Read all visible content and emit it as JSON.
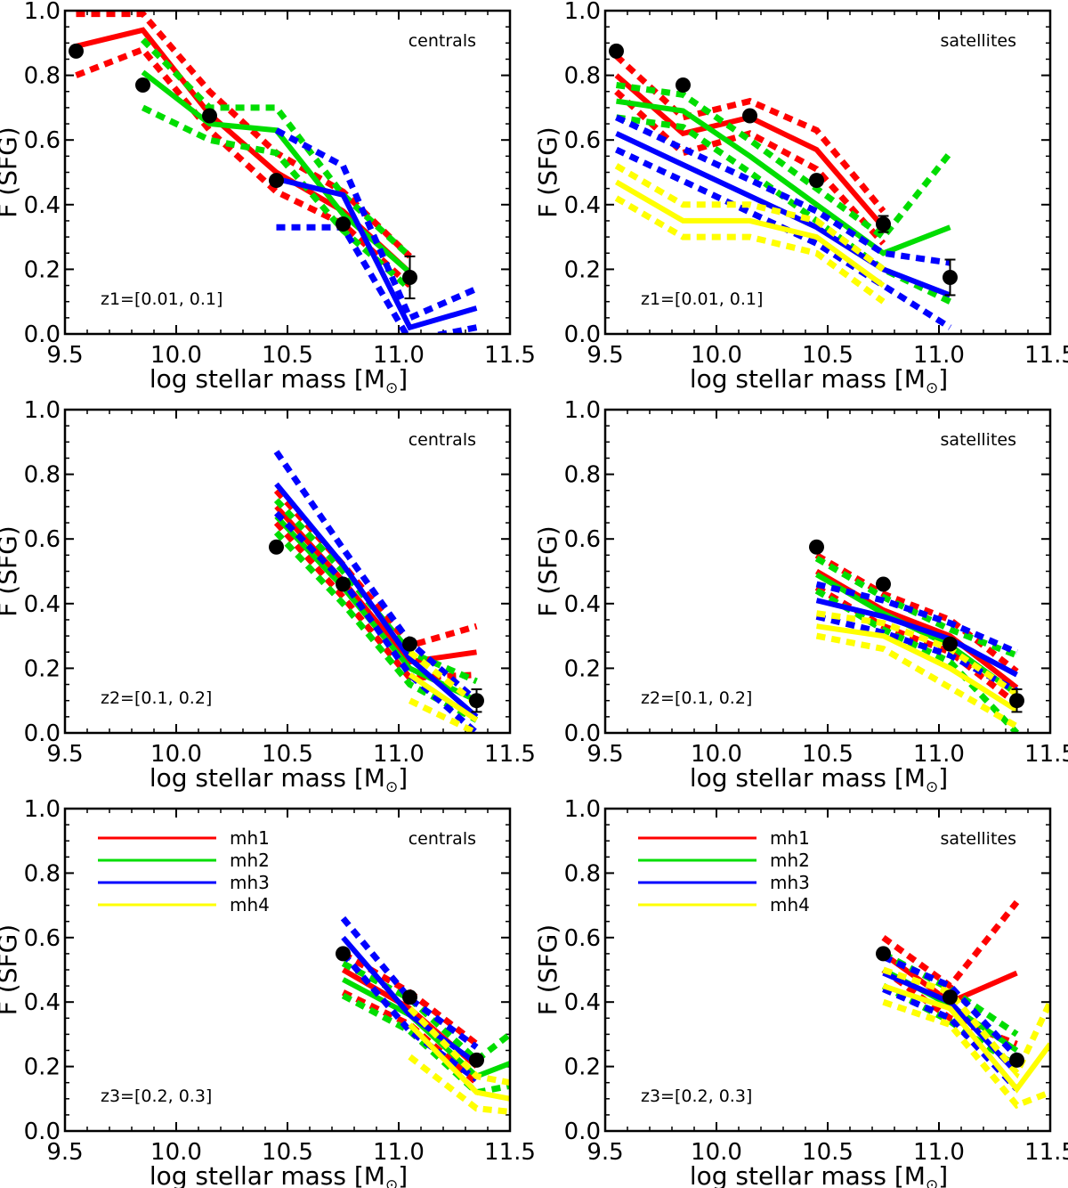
{
  "chart_data": [
    {
      "type": "line",
      "xlabel": "log stellar mass [M",
      "ylabel": "F (SFG)",
      "xlim": [
        9.5,
        11.5
      ],
      "ylim": [
        0.0,
        1.0
      ],
      "xticks": [
        "9.5",
        "10.0",
        "10.5",
        "11.0",
        "11.5"
      ],
      "yticks": [
        "0.0",
        "0.2",
        "0.4",
        "0.6",
        "0.8",
        "1.0"
      ],
      "label": "centrals",
      "zlabel": "z1=[0.01, 0.1]",
      "legend": [],
      "observed": {
        "x": [
          9.55,
          9.85,
          10.15,
          10.45,
          10.75,
          11.05
        ],
        "y": [
          0.875,
          0.77,
          0.675,
          0.475,
          0.34,
          0.175
        ],
        "err": [
          0,
          0,
          0,
          0,
          0,
          0.065
        ]
      },
      "series": [
        {
          "name": "mh1",
          "color": "#ff0000",
          "x": [
            9.55,
            9.85,
            10.15,
            10.45,
            10.75,
            11.05
          ],
          "y": [
            0.89,
            0.94,
            0.68,
            0.5,
            0.38,
            0.19
          ],
          "lo": [
            0.8,
            0.88,
            0.63,
            0.44,
            0.34,
            0.15
          ],
          "hi": [
            0.99,
            0.99,
            0.75,
            0.56,
            0.44,
            0.24
          ]
        },
        {
          "name": "mh2",
          "color": "#00dd00",
          "x": [
            9.85,
            10.15,
            10.45,
            10.75,
            11.05
          ],
          "y": [
            0.81,
            0.65,
            0.63,
            0.37,
            0.19
          ],
          "lo": [
            0.7,
            0.6,
            0.56,
            0.32,
            0.14
          ],
          "hi": [
            0.91,
            0.7,
            0.7,
            0.43,
            0.24
          ]
        },
        {
          "name": "mh3",
          "color": "#0000ff",
          "x": [
            10.45,
            10.75,
            11.05,
            11.35
          ],
          "y": [
            0.48,
            0.43,
            0.02,
            0.08
          ],
          "lo": [
            0.33,
            0.33,
            -0.02,
            0.02
          ],
          "hi": [
            0.63,
            0.52,
            0.05,
            0.14
          ]
        }
      ]
    },
    {
      "type": "line",
      "xlabel": "log stellar mass [M",
      "ylabel": "F (SFG)",
      "xlim": [
        9.5,
        11.5
      ],
      "ylim": [
        0.0,
        1.0
      ],
      "xticks": [
        "9.5",
        "10.0",
        "10.5",
        "11.0",
        "11.5"
      ],
      "yticks": [
        "0.0",
        "0.2",
        "0.4",
        "0.6",
        "0.8",
        "1.0"
      ],
      "label": "satellites",
      "zlabel": "z1=[0.01, 0.1]",
      "legend": [],
      "observed": {
        "x": [
          9.55,
          9.85,
          10.15,
          10.45,
          10.75,
          11.05
        ],
        "y": [
          0.875,
          0.77,
          0.675,
          0.475,
          0.34,
          0.175
        ],
        "err": [
          0,
          0,
          0,
          0,
          0.025,
          0.055
        ]
      },
      "series": [
        {
          "name": "mh1",
          "color": "#ff0000",
          "x": [
            9.55,
            9.85,
            10.15,
            10.45,
            10.75
          ],
          "y": [
            0.8,
            0.62,
            0.67,
            0.57,
            0.33
          ],
          "lo": [
            0.75,
            0.56,
            0.62,
            0.51,
            0.28
          ],
          "hi": [
            0.86,
            0.67,
            0.72,
            0.63,
            0.38
          ]
        },
        {
          "name": "mh2",
          "color": "#00dd00",
          "x": [
            9.55,
            9.85,
            10.15,
            10.45,
            10.75,
            11.05
          ],
          "y": [
            0.72,
            0.69,
            0.55,
            0.4,
            0.25,
            0.33
          ],
          "lo": [
            0.67,
            0.64,
            0.5,
            0.35,
            0.2,
            0.1
          ],
          "hi": [
            0.77,
            0.74,
            0.6,
            0.45,
            0.3,
            0.56
          ]
        },
        {
          "name": "mh3",
          "color": "#0000ff",
          "x": [
            9.55,
            10.45,
            10.75,
            11.05
          ],
          "y": [
            0.62,
            0.33,
            0.2,
            0.12
          ],
          "lo": [
            0.57,
            0.28,
            0.15,
            0.02
          ],
          "hi": [
            0.67,
            0.38,
            0.25,
            0.22
          ]
        },
        {
          "name": "mh4",
          "color": "#ffff00",
          "x": [
            9.55,
            9.85,
            10.15,
            10.45,
            10.75
          ],
          "y": [
            0.47,
            0.35,
            0.35,
            0.3,
            0.15
          ],
          "lo": [
            0.42,
            0.3,
            0.3,
            0.25,
            0.1
          ],
          "hi": [
            0.52,
            0.4,
            0.4,
            0.35,
            0.2
          ]
        }
      ]
    },
    {
      "type": "line",
      "xlabel": "log stellar mass [M",
      "ylabel": "F (SFG)",
      "xlim": [
        9.5,
        11.5
      ],
      "ylim": [
        0.0,
        1.0
      ],
      "xticks": [
        "9.5",
        "10.0",
        "10.5",
        "11.0",
        "11.5"
      ],
      "yticks": [
        "0.0",
        "0.2",
        "0.4",
        "0.6",
        "0.8",
        "1.0"
      ],
      "label": "centrals",
      "zlabel": "z2=[0.1, 0.2]",
      "legend": [],
      "observed": {
        "x": [
          10.45,
          10.75,
          11.05,
          11.35
        ],
        "y": [
          0.575,
          0.46,
          0.275,
          0.1
        ],
        "err": [
          0,
          0,
          0,
          0.035
        ]
      },
      "series": [
        {
          "name": "mh1",
          "color": "#ff0000",
          "x": [
            10.45,
            10.75,
            11.05,
            11.35
          ],
          "y": [
            0.7,
            0.47,
            0.22,
            0.25
          ],
          "lo": [
            0.65,
            0.42,
            0.17,
            0.18
          ],
          "hi": [
            0.75,
            0.52,
            0.27,
            0.33
          ]
        },
        {
          "name": "mh2",
          "color": "#00dd00",
          "x": [
            10.45,
            10.75,
            11.05,
            11.35
          ],
          "y": [
            0.67,
            0.45,
            0.2,
            0.1
          ],
          "lo": [
            0.62,
            0.4,
            0.15,
            0.04
          ],
          "hi": [
            0.72,
            0.5,
            0.25,
            0.16
          ]
        },
        {
          "name": "mh3",
          "color": "#0000ff",
          "x": [
            10.45,
            10.75,
            11.05,
            11.35
          ],
          "y": [
            0.77,
            0.52,
            0.23,
            0.05
          ],
          "lo": [
            0.68,
            0.47,
            0.18,
            0.0
          ],
          "hi": [
            0.87,
            0.57,
            0.28,
            0.1
          ]
        },
        {
          "name": "mh4",
          "color": "#ffff00",
          "x": [
            11.05,
            11.35
          ],
          "y": [
            0.18,
            0.04
          ],
          "lo": [
            0.1,
            0.0
          ],
          "hi": [
            0.25,
            0.09
          ]
        }
      ]
    },
    {
      "type": "line",
      "xlabel": "log stellar mass [M",
      "ylabel": "F (SFG)",
      "xlim": [
        9.5,
        11.5
      ],
      "ylim": [
        0.0,
        1.0
      ],
      "xticks": [
        "9.5",
        "10.0",
        "10.5",
        "11.0",
        "11.5"
      ],
      "yticks": [
        "0.0",
        "0.2",
        "0.4",
        "0.6",
        "0.8",
        "1.0"
      ],
      "label": "satellites",
      "zlabel": "z2=[0.1, 0.2]",
      "legend": [],
      "observed": {
        "x": [
          10.45,
          10.75,
          11.05,
          11.35
        ],
        "y": [
          0.575,
          0.46,
          0.275,
          0.1
        ],
        "err": [
          0,
          0,
          0,
          0.035
        ]
      },
      "series": [
        {
          "name": "mh1",
          "color": "#ff0000",
          "x": [
            10.45,
            10.75,
            11.05,
            11.35
          ],
          "y": [
            0.5,
            0.38,
            0.3,
            0.14
          ],
          "lo": [
            0.45,
            0.33,
            0.25,
            0.09
          ],
          "hi": [
            0.55,
            0.43,
            0.35,
            0.19
          ]
        },
        {
          "name": "mh2",
          "color": "#00dd00",
          "x": [
            10.45,
            10.75,
            11.05,
            11.35
          ],
          "y": [
            0.49,
            0.37,
            0.27,
            0.12
          ],
          "lo": [
            0.44,
            0.32,
            0.22,
            0.0
          ],
          "hi": [
            0.54,
            0.42,
            0.32,
            0.24
          ]
        },
        {
          "name": "mh3",
          "color": "#0000ff",
          "x": [
            10.45,
            10.75,
            11.05,
            11.35
          ],
          "y": [
            0.41,
            0.36,
            0.29,
            0.18
          ],
          "lo": [
            0.36,
            0.31,
            0.24,
            0.13
          ],
          "hi": [
            0.46,
            0.41,
            0.34,
            0.25
          ]
        },
        {
          "name": "mh4",
          "color": "#ffff00",
          "x": [
            10.45,
            10.75,
            11.05,
            11.35
          ],
          "y": [
            0.33,
            0.3,
            0.2,
            0.07
          ],
          "lo": [
            0.3,
            0.26,
            0.14,
            0.02
          ],
          "hi": [
            0.37,
            0.34,
            0.26,
            0.12
          ]
        }
      ]
    },
    {
      "type": "line",
      "xlabel": "log stellar mass [M",
      "ylabel": "F (SFG)",
      "xlim": [
        9.5,
        11.5
      ],
      "ylim": [
        0.0,
        1.0
      ],
      "xticks": [
        "9.5",
        "10.0",
        "10.5",
        "11.0",
        "11.5"
      ],
      "yticks": [
        "0.0",
        "0.2",
        "0.4",
        "0.6",
        "0.8",
        "1.0"
      ],
      "label": "centrals",
      "zlabel": "z3=[0.2, 0.3]",
      "legend": [
        "mh1",
        "mh2",
        "mh3",
        "mh4"
      ],
      "observed": {
        "x": [
          10.75,
          11.05,
          11.35
        ],
        "y": [
          0.55,
          0.415,
          0.22
        ],
        "err": [
          0,
          0,
          0
        ]
      },
      "series": [
        {
          "name": "mh1",
          "color": "#ff0000",
          "x": [
            10.75,
            11.05,
            11.35
          ],
          "y": [
            0.5,
            0.38,
            0.2
          ],
          "lo": [
            0.43,
            0.33,
            0.15
          ],
          "hi": [
            0.55,
            0.43,
            0.27
          ]
        },
        {
          "name": "mh2",
          "color": "#00dd00",
          "x": [
            10.75,
            11.05,
            11.35,
            11.5
          ],
          "y": [
            0.47,
            0.36,
            0.17,
            0.21
          ],
          "lo": [
            0.42,
            0.31,
            0.12,
            0.14
          ],
          "hi": [
            0.52,
            0.41,
            0.22,
            0.3
          ]
        },
        {
          "name": "mh3",
          "color": "#0000ff",
          "x": [
            10.75,
            11.05,
            11.35
          ],
          "y": [
            0.6,
            0.36,
            0.21
          ],
          "lo": [
            0.55,
            0.31,
            0.16
          ],
          "hi": [
            0.66,
            0.41,
            0.26
          ]
        },
        {
          "name": "mh4",
          "color": "#ffff00",
          "x": [
            11.05,
            11.35,
            11.5
          ],
          "y": [
            0.33,
            0.12,
            0.1
          ],
          "lo": [
            0.23,
            0.07,
            0.06
          ],
          "hi": [
            0.38,
            0.17,
            0.15
          ]
        }
      ]
    },
    {
      "type": "line",
      "xlabel": "log stellar mass [M",
      "ylabel": "F (SFG)",
      "xlim": [
        9.5,
        11.5
      ],
      "ylim": [
        0.0,
        1.0
      ],
      "xticks": [
        "9.5",
        "10.0",
        "10.5",
        "11.0",
        "11.5"
      ],
      "yticks": [
        "0.0",
        "0.2",
        "0.4",
        "0.6",
        "0.8",
        "1.0"
      ],
      "label": "satellites",
      "zlabel": "z3=[0.2, 0.3]",
      "legend": [
        "mh1",
        "mh2",
        "mh3",
        "mh4"
      ],
      "observed": {
        "x": [
          10.75,
          11.05,
          11.35
        ],
        "y": [
          0.55,
          0.415,
          0.22
        ],
        "err": [
          0,
          0,
          0
        ]
      },
      "series": [
        {
          "name": "mh1",
          "color": "#ff0000",
          "x": [
            10.75,
            11.05,
            11.35
          ],
          "y": [
            0.55,
            0.4,
            0.49
          ],
          "lo": [
            0.5,
            0.35,
            0.27
          ],
          "hi": [
            0.6,
            0.45,
            0.71
          ]
        },
        {
          "name": "mh2",
          "color": "#00dd00",
          "x": [
            10.75,
            11.05,
            11.35
          ],
          "y": [
            0.5,
            0.39,
            0.25
          ],
          "lo": [
            0.45,
            0.34,
            0.2
          ],
          "hi": [
            0.55,
            0.44,
            0.3
          ]
        },
        {
          "name": "mh3",
          "color": "#0000ff",
          "x": [
            10.75,
            11.05,
            11.35
          ],
          "y": [
            0.49,
            0.4,
            0.18
          ],
          "lo": [
            0.44,
            0.35,
            0.13
          ],
          "hi": [
            0.54,
            0.45,
            0.23
          ]
        },
        {
          "name": "mh4",
          "color": "#ffff00",
          "x": [
            10.75,
            11.05,
            11.35,
            11.5
          ],
          "y": [
            0.45,
            0.38,
            0.13,
            0.27
          ],
          "lo": [
            0.4,
            0.33,
            0.08,
            0.12
          ],
          "hi": [
            0.5,
            0.43,
            0.18,
            0.4
          ]
        }
      ]
    }
  ]
}
